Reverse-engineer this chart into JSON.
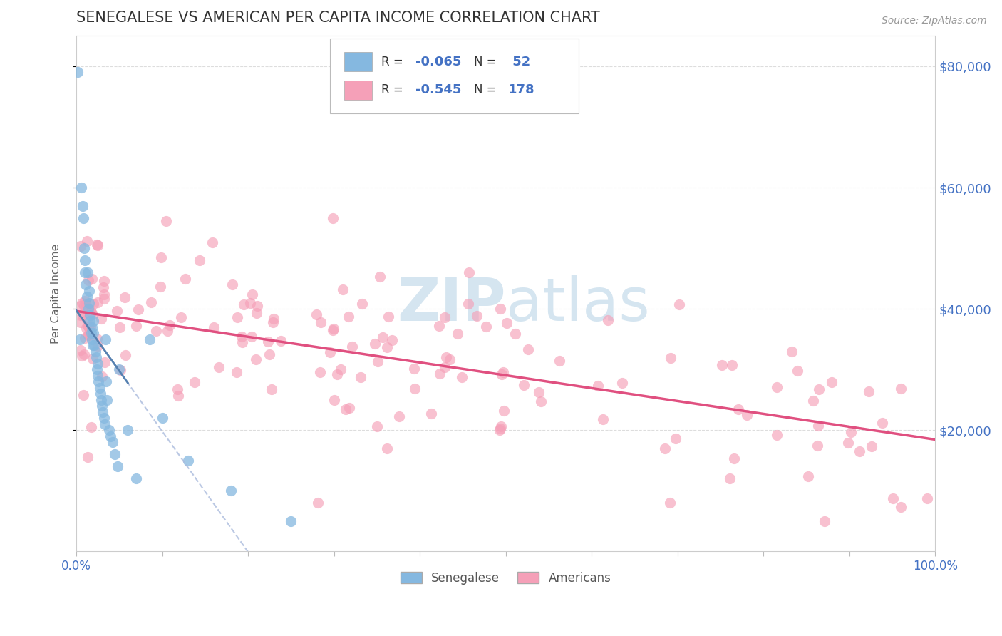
{
  "title": "SENEGALESE VS AMERICAN PER CAPITA INCOME CORRELATION CHART",
  "source": "Source: ZipAtlas.com",
  "ylabel": "Per Capita Income",
  "legend_label1": "Senegalese",
  "legend_label2": "Americans",
  "R1": -0.065,
  "N1": 52,
  "R2": -0.545,
  "N2": 178,
  "color_blue": "#85B8E0",
  "color_pink": "#F5A0B8",
  "color_blue_line": "#5580B0",
  "color_pink_line": "#E05080",
  "color_dashed": "#AABBDD",
  "watermark_color": "#D5E5F0",
  "ytick_labels": [
    "$20,000",
    "$40,000",
    "$60,000",
    "$80,000"
  ],
  "ytick_values": [
    20000,
    40000,
    60000,
    80000
  ],
  "xlim": [
    0.0,
    1.0
  ],
  "ylim": [
    0,
    85000
  ],
  "background_color": "#FFFFFF",
  "grid_color": "#DDDDDD",
  "title_color": "#333333",
  "tick_label_color": "#4472C4"
}
